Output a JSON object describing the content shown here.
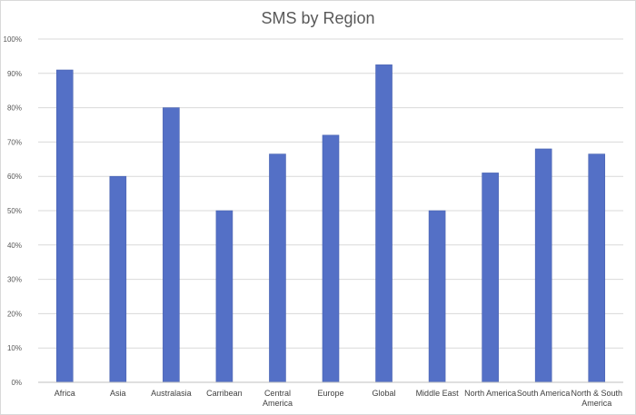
{
  "chart_data": {
    "type": "bar",
    "title": "SMS by Region",
    "xlabel": "",
    "ylabel": "",
    "ylim": [
      0,
      100
    ],
    "y_ticks": [
      "0%",
      "10%",
      "20%",
      "30%",
      "40%",
      "50%",
      "60%",
      "70%",
      "80%",
      "90%",
      "100%"
    ],
    "categories": [
      "Africa",
      "Asia",
      "Australasia",
      "Carribean",
      "Central America",
      "Europe",
      "Global",
      "Middle East",
      "North America",
      "South America",
      "North & South America"
    ],
    "values": [
      91,
      60,
      80,
      50,
      66.5,
      72,
      92.5,
      50,
      61,
      68,
      66.5
    ],
    "grid": true,
    "legend": "none",
    "bar_color": "#5470c6"
  }
}
